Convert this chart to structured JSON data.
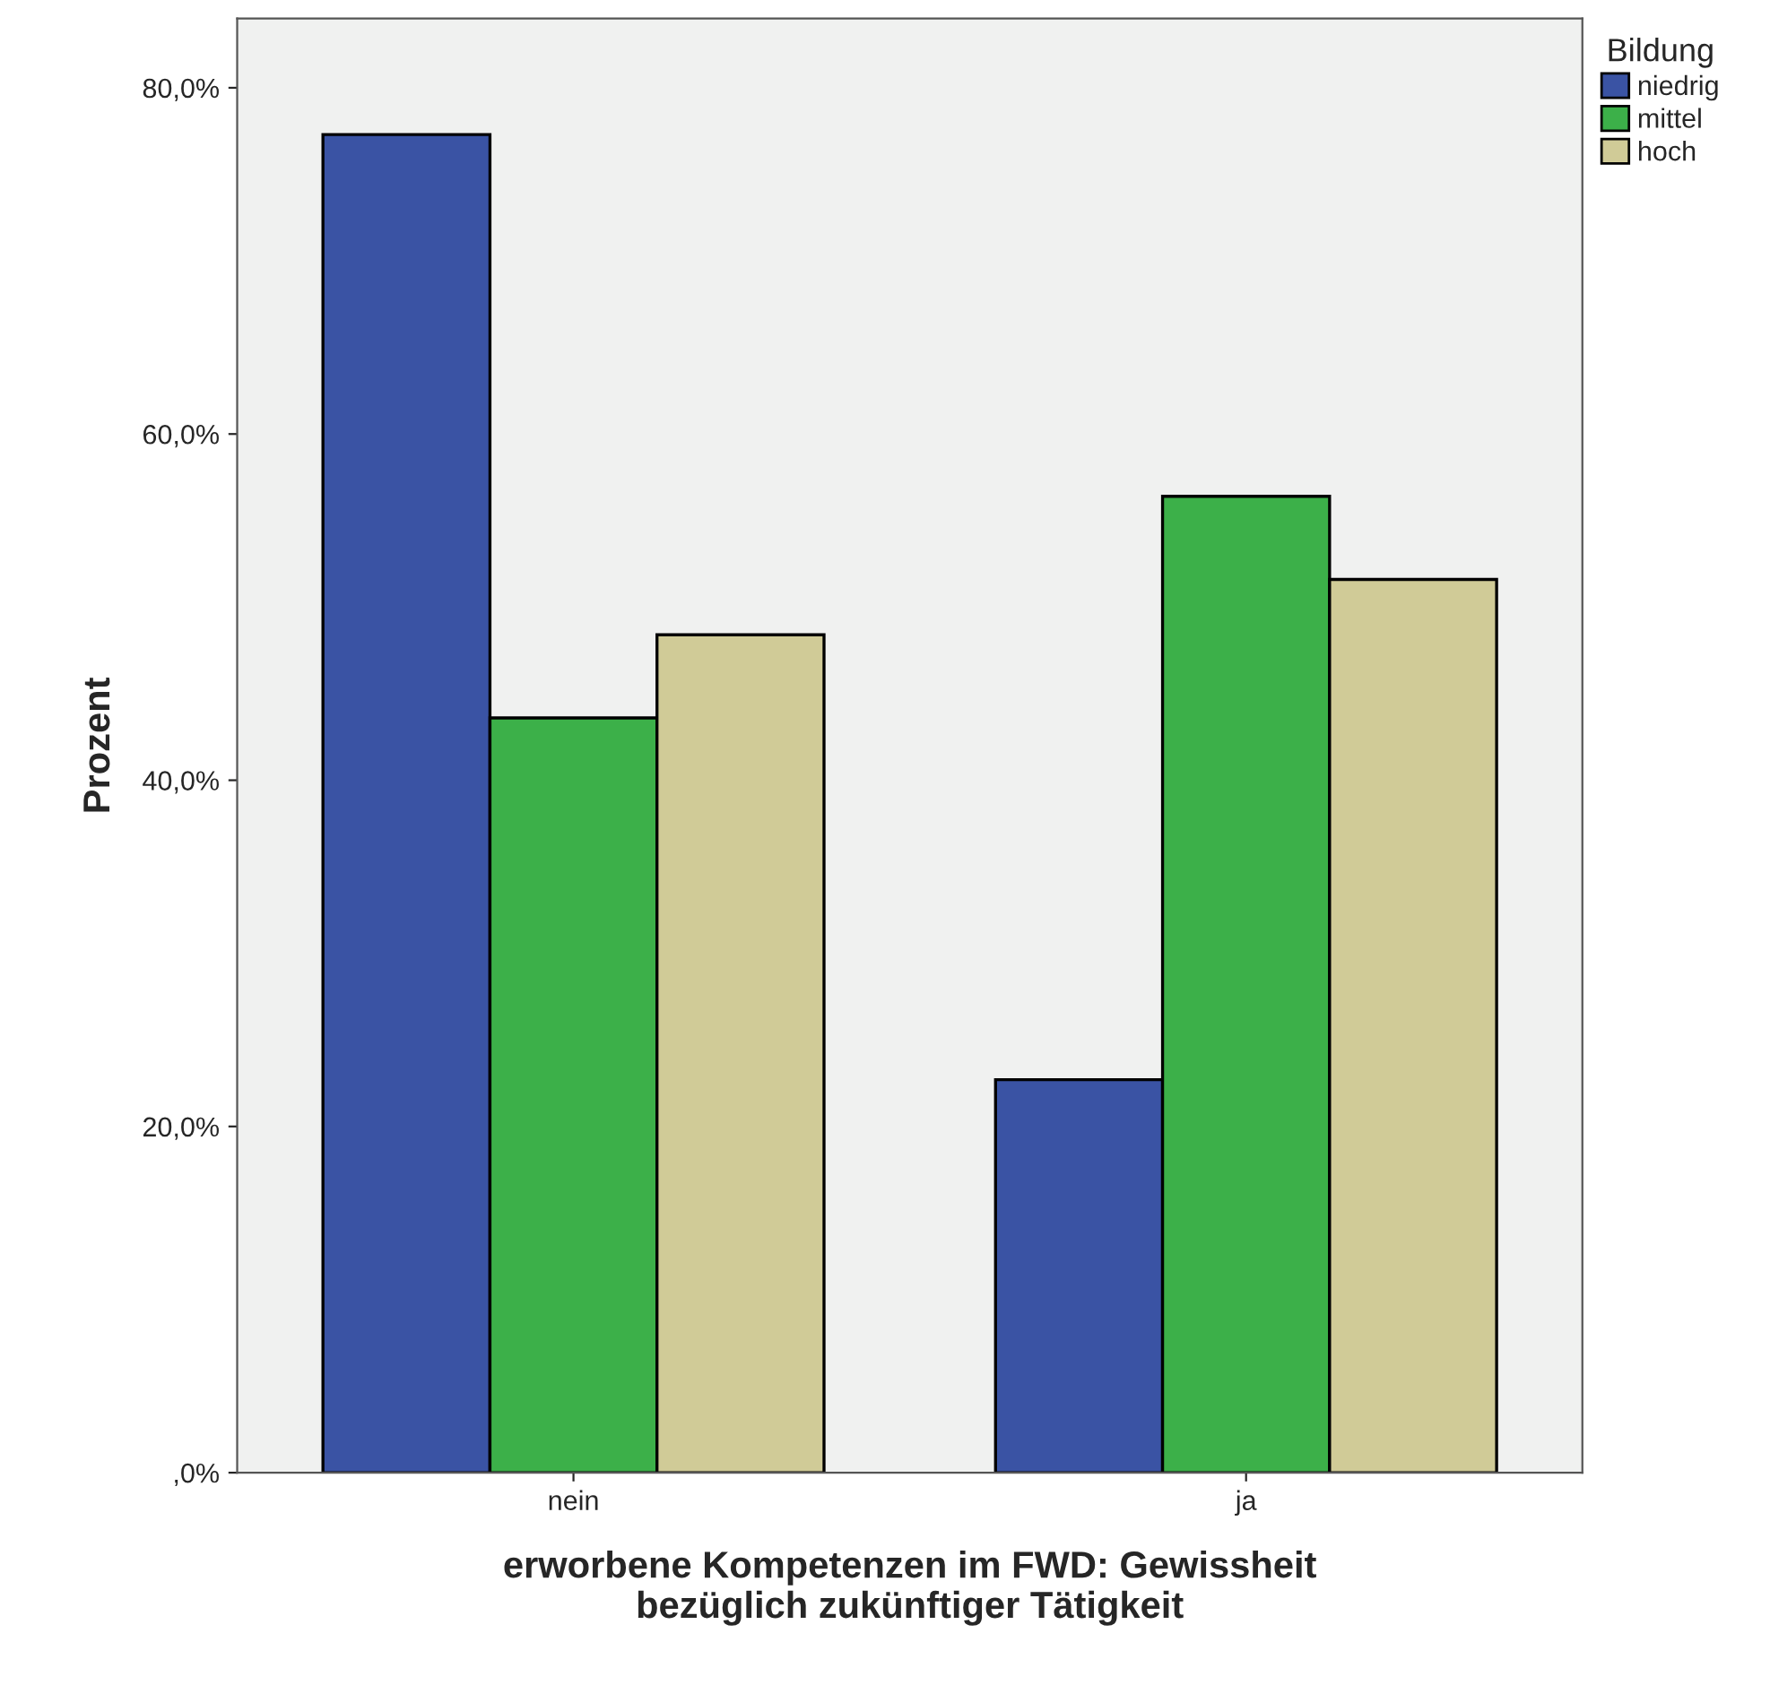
{
  "chart_data": {
    "type": "bar",
    "xlabel": "erworbene Kompetenzen im FWD: Gewissheit\nbezüglich zukünftiger Tätigkeit",
    "ylabel": "Prozent",
    "legend_title": "Bildung",
    "categories": [
      "nein",
      "ja"
    ],
    "series": [
      {
        "name": "niedrig",
        "color": "#3a53a4",
        "values": [
          77.3,
          22.7
        ]
      },
      {
        "name": "mittel",
        "color": "#3cb049",
        "values": [
          43.6,
          56.4
        ]
      },
      {
        "name": "hoch",
        "color": "#d0cb97",
        "values": [
          48.4,
          51.6
        ]
      }
    ],
    "ylim": [
      0,
      84
    ],
    "yticks": [
      {
        "value": 0,
        "label": ",0%"
      },
      {
        "value": 20,
        "label": "20,0%"
      },
      {
        "value": 40,
        "label": "40,0%"
      },
      {
        "value": 60,
        "label": "60,0%"
      },
      {
        "value": 80,
        "label": "80,0%"
      }
    ],
    "grid": false,
    "legend": "top right"
  }
}
